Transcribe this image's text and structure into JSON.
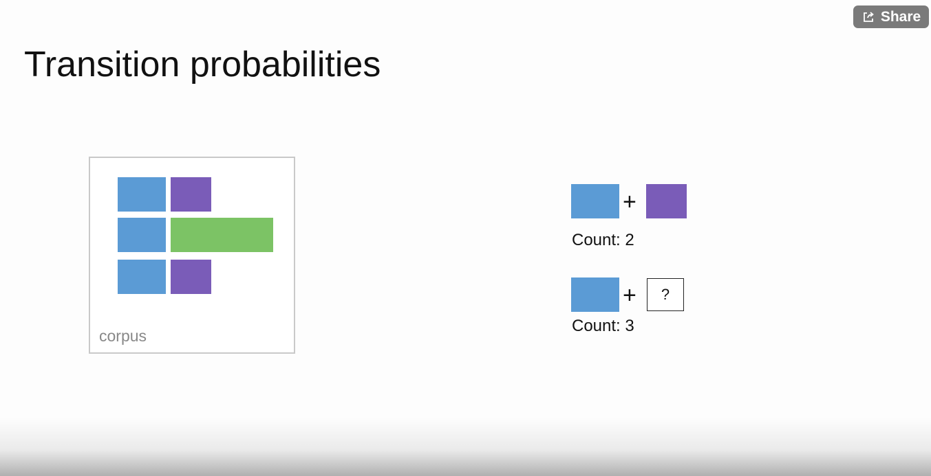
{
  "slide": {
    "title": "Transition probabilities"
  },
  "share": {
    "label": "Share",
    "icon": "share-icon"
  },
  "corpus": {
    "label": "corpus"
  },
  "transitions": [
    {
      "plus": "+",
      "count_label": "Count: 2",
      "next": "purple-block"
    },
    {
      "plus": "+",
      "count_label": "Count: 3",
      "next_label": "?"
    }
  ],
  "colors": {
    "blue": "#5b9bd5",
    "purple": "#7a5cb8",
    "green": "#7cc365"
  }
}
